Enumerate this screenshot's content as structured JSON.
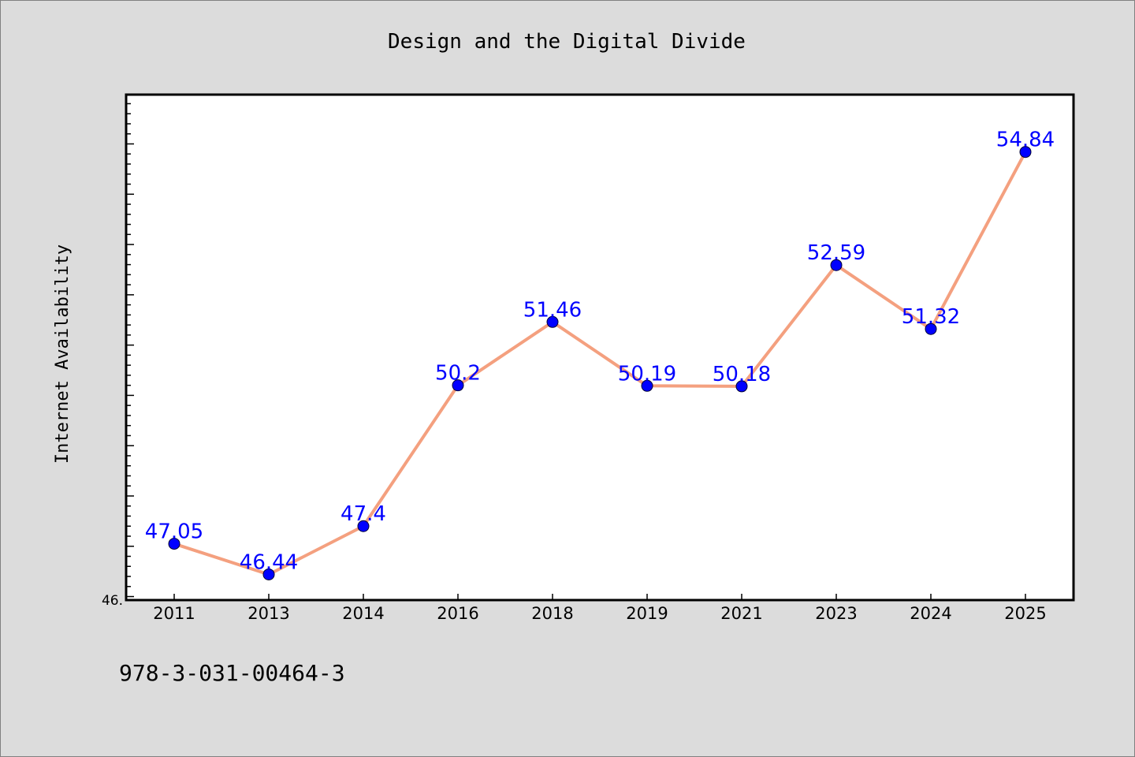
{
  "footer_text": "978-3-031-00464-3",
  "colors": {
    "background": "#dcdcdc",
    "plot_background": "#ffffff",
    "line": "#f4a07f",
    "marker": "#0000ff",
    "label": "#0000ff"
  },
  "chart_data": {
    "type": "line",
    "title": "Design and the Digital Divide",
    "xlabel": "",
    "ylabel": "Internet Availability",
    "categories": [
      "2011",
      "2013",
      "2014",
      "2016",
      "2018",
      "2019",
      "2021",
      "2023",
      "2024",
      "2025"
    ],
    "series": [
      {
        "values": [
          47.05,
          46.44,
          47.4,
          50.2,
          51.46,
          50.19,
          50.18,
          52.59,
          51.32,
          54.84
        ],
        "labels": [
          "47.05",
          "46.44",
          "47.4",
          "50.2",
          "51.46",
          "50.19",
          "50.18",
          "52.59",
          "51.32",
          "54.84"
        ]
      }
    ],
    "ylim": [
      45.93,
      55.98
    ],
    "y_tick_labels": [
      "46."
    ],
    "grid": false,
    "legend": "none"
  }
}
